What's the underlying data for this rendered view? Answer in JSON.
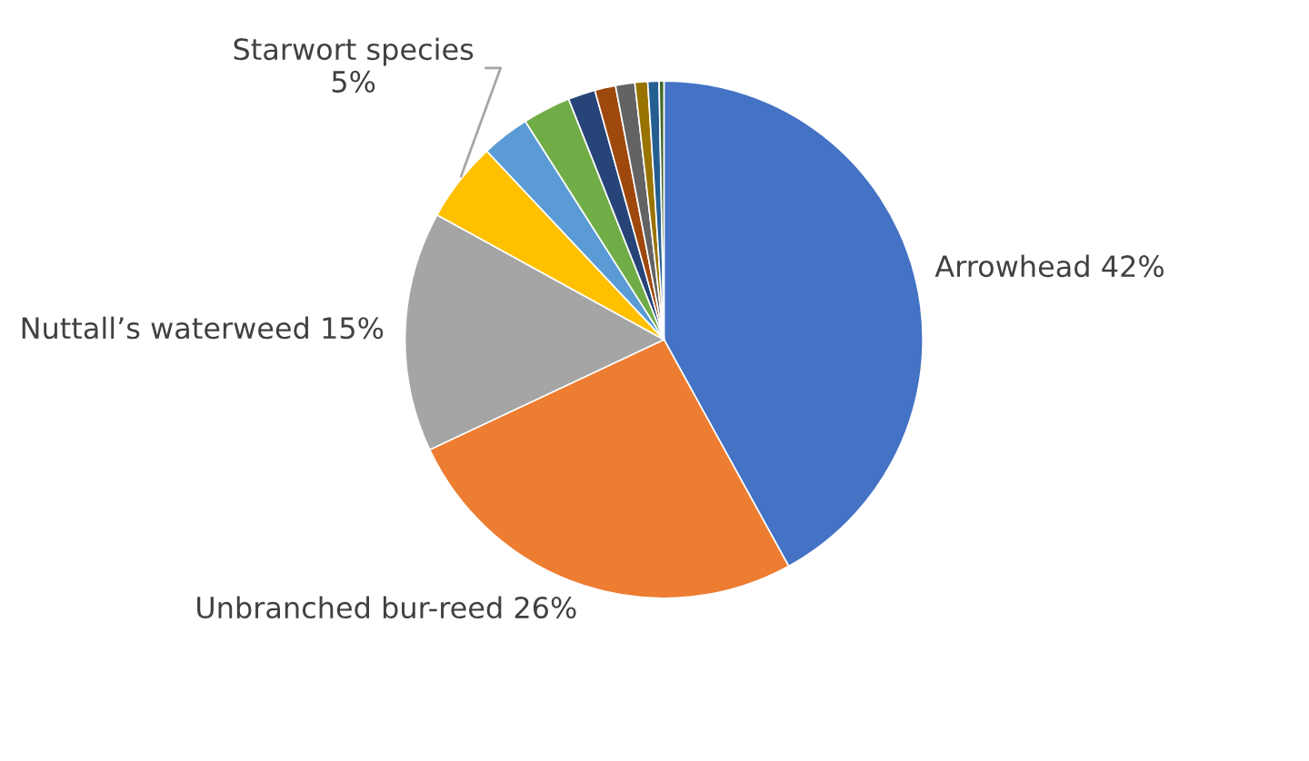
{
  "chart_data": {
    "type": "pie",
    "categories": [
      "Arrowhead",
      "Unbranched bur-reed",
      "Nuttall’s waterweed",
      "Starwort species",
      null,
      null,
      null,
      null,
      null,
      null,
      null,
      null
    ],
    "values": [
      42,
      26,
      15,
      5,
      3,
      3,
      1.7,
      1.3,
      1.2,
      0.8,
      0.7,
      0.3
    ],
    "value_labels": [
      "42%",
      "26%",
      "15%",
      "5%",
      null,
      null,
      null,
      null,
      null,
      null,
      null,
      null
    ],
    "colors": [
      "#4472c4",
      "#ed7d31",
      "#a5a5a5",
      "#ffc000",
      "#5b9bd5",
      "#70ad47",
      "#264478",
      "#9e480e",
      "#636363",
      "#997300",
      "#255e91",
      "#43682b"
    ]
  }
}
